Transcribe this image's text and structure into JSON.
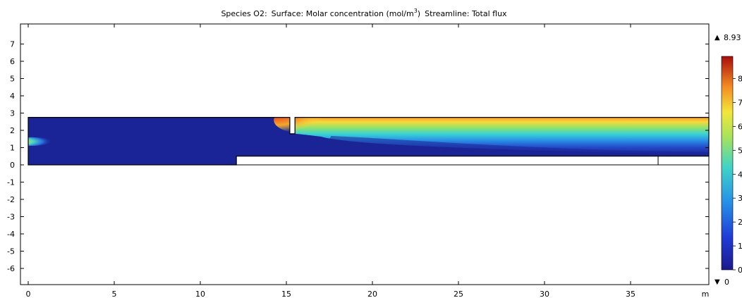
{
  "chart_data": {
    "type": "heatmap",
    "title": {
      "species": "Species O2:",
      "surface_prefix": "Surface: Molar concentration (mol/m",
      "surface_exp": "3",
      "surface_suffix": ")",
      "streamline": "Streamline: Total flux"
    },
    "x_unit": "m",
    "xlim": [
      0,
      39.5
    ],
    "ylim": [
      -7,
      8
    ],
    "x_ticks": [
      0,
      5,
      10,
      15,
      20,
      25,
      30,
      35
    ],
    "y_ticks": [
      7,
      6,
      5,
      4,
      3,
      2,
      1,
      0,
      -1,
      -2,
      -3,
      -4,
      -5,
      -6
    ],
    "colorbar": {
      "max_label": "8.93",
      "min_label": "0",
      "tick_labels": [
        "8",
        "7",
        "6",
        "5",
        "4",
        "3",
        "2",
        "1",
        "0"
      ],
      "max_arrow": "▲",
      "min_arrow": "▼"
    },
    "domain": {
      "upper_channel_top": 2.75,
      "wall_bottom": 1.8,
      "wall_x": [
        15.2,
        15.5
      ],
      "lower_strip_top": 0.5,
      "lower_strip_bottom": 0.0,
      "lower_breaks_x": [
        12.1,
        36.6
      ]
    }
  },
  "colors": {
    "low": "#1b2496",
    "background": "#ffffff"
  }
}
